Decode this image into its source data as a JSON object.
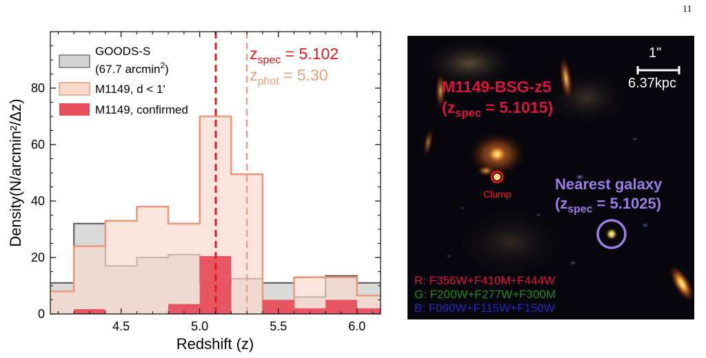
{
  "page_number": "11",
  "chart_data": {
    "type": "histogram",
    "xlabel": "Redshift (z)",
    "ylabel": "Density(N/arcmin²/Δz)",
    "xlim": [
      4.05,
      6.15
    ],
    "ylim": [
      0,
      100
    ],
    "xticks": [
      4.5,
      5.0,
      5.5,
      6.0
    ],
    "yticks": [
      0,
      20,
      40,
      60,
      80
    ],
    "bin_edges": [
      4.0,
      4.2,
      4.4,
      4.6,
      4.8,
      5.0,
      5.2,
      5.4,
      5.6,
      5.8,
      6.0,
      6.2
    ],
    "legend_position": "top-left",
    "series": [
      {
        "name": "GOODS-S",
        "name_line2": "(67.7 arcmin",
        "name_line2_sup": "2",
        "name_line2_end": ")",
        "values": [
          11,
          32,
          17,
          20,
          21,
          11,
          12.5,
          11,
          6,
          13.5,
          11
        ],
        "fill": "#d4d4d4",
        "edge": "#555555"
      },
      {
        "name": "M1149, d < 1'",
        "values": [
          8,
          24,
          33,
          38,
          32,
          70,
          49.5,
          0,
          13,
          13,
          6.5
        ],
        "fill": "#fad8cc",
        "edge": "#e99a7c"
      },
      {
        "name": "M1149, confirmed",
        "values": [
          0,
          1.7,
          0,
          0,
          3.5,
          20.5,
          0,
          5,
          2,
          5,
          2
        ],
        "fill": "#e64e5c",
        "edge": "#e64e5c"
      }
    ],
    "vlines": [
      {
        "x": 5.102,
        "color": "#e8161c",
        "label_main": "z",
        "label_sub": "spec",
        "label_value": " = 5.102"
      },
      {
        "x": 5.3,
        "color": "#eda07e",
        "label_main": "z",
        "label_sub": "phot",
        "label_value": " = 5.30"
      }
    ]
  },
  "image_panel": {
    "object_name": "M1149-BSG-z5",
    "object_z_prefix": "(z",
    "object_z_sub": "spec",
    "object_z_value": " = 5.1015)",
    "clump_label": "Clump",
    "nearest_label": "Nearest galaxy",
    "nearest_z_prefix": "(z",
    "nearest_z_sub": "spec",
    "nearest_z_value": " = 5.1025)",
    "scalebar_top": "1\"",
    "scalebar_bottom": "6.37kpc",
    "filter_r": "R: F356W+F410M+F444W",
    "filter_g": "G: F200W+F277W+F300M",
    "filter_b": "B: F090W+F115W+F150W",
    "colors": {
      "red": "#d8163e",
      "green": "#1e8a1e",
      "blue": "#2727c8",
      "purple": "#9a7ee6"
    }
  }
}
